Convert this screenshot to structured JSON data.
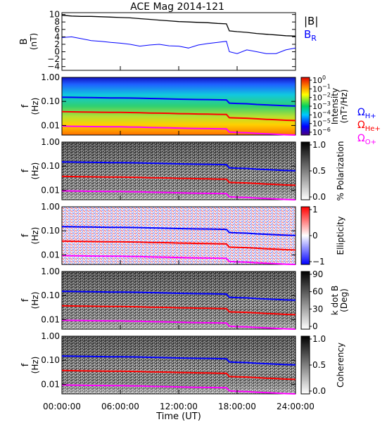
{
  "title": "ACE Mag 2014-121",
  "x_axis": {
    "label": "Time (UT)",
    "ticks": [
      "00:00:00",
      "06:00:00",
      "12:00:00",
      "18:00:00",
      "24:00:00"
    ],
    "range_hours": [
      0,
      24
    ]
  },
  "colors": {
    "B_total": "#000000",
    "B_R": "#0000ff",
    "H_plus": "#0000ff",
    "He_plus": "#ff0000",
    "O_plus": "#ff00ff"
  },
  "legend": {
    "panel1": [
      "|B|",
      "B",
      "R"
    ],
    "gyro": [
      {
        "symbol": "Ω",
        "sub": "H+",
        "color": "#0000ff"
      },
      {
        "symbol": "Ω",
        "sub": "He+",
        "color": "#ff0000"
      },
      {
        "symbol": "Ω",
        "sub": "O+",
        "color": "#ff00ff"
      }
    ]
  },
  "freq_ticks": [
    "1.00",
    "0.10",
    "0.01"
  ],
  "panels": [
    {
      "id": "field",
      "ylabel": "B",
      "yunit": "(nT)",
      "yticks": [
        "10",
        "8",
        "6",
        "4",
        "2",
        "0",
        "−2",
        "−4"
      ],
      "yrange": [
        -5,
        10.5
      ]
    },
    {
      "id": "intensity",
      "ylabel": "f",
      "yunit": "(Hz)",
      "colorbar_label": "Intensity",
      "colorbar_unit": "(nT²/Hz)",
      "colorbar_ticks": [
        {
          "base": "10",
          "exp": "0"
        },
        {
          "base": "10",
          "exp": "−1"
        },
        {
          "base": "10",
          "exp": "−2"
        },
        {
          "base": "10",
          "exp": "−3"
        },
        {
          "base": "10",
          "exp": "−4"
        },
        {
          "base": "10",
          "exp": "−5"
        },
        {
          "base": "10",
          "exp": "−6"
        }
      ]
    },
    {
      "id": "polarization",
      "ylabel": "f",
      "yunit": "(Hz)",
      "colorbar_label": "% Polarization",
      "colorbar_ticks": [
        "1.0",
        "0.5",
        "0.0"
      ]
    },
    {
      "id": "ellipticity",
      "ylabel": "f",
      "yunit": "(Hz)",
      "colorbar_label": "Ellipticity",
      "colorbar_ticks": [
        "1",
        "0",
        "−1"
      ]
    },
    {
      "id": "kdotb",
      "ylabel": "f",
      "yunit": "(Hz)",
      "colorbar_label": "k dot B",
      "colorbar_unit": "(Deg)",
      "colorbar_ticks": [
        "90",
        "60",
        "30",
        "0"
      ]
    },
    {
      "id": "coherency",
      "ylabel": "f",
      "yunit": "(Hz)",
      "colorbar_label": "Coherency",
      "colorbar_ticks": [
        "1.0",
        "0.5",
        "0.0"
      ]
    }
  ],
  "chart_data": {
    "type": "line",
    "title": "ACE Mag 2014-121",
    "xlabel": "Time (UT)",
    "x_hours": [
      0,
      1,
      2,
      3,
      4,
      5,
      6,
      7,
      8,
      9,
      10,
      11,
      12,
      13,
      14,
      15,
      16,
      16.9,
      17.2,
      18,
      19,
      20,
      21,
      22,
      23,
      24
    ],
    "series": [
      {
        "name": "|B|",
        "values": [
          9.8,
          9.6,
          9.5,
          9.5,
          9.4,
          9.3,
          9.2,
          9.1,
          8.9,
          8.7,
          8.5,
          8.3,
          8.1,
          8.0,
          7.9,
          7.8,
          7.6,
          7.5,
          5.6,
          5.4,
          5.2,
          4.9,
          4.7,
          4.5,
          4.3,
          4.2
        ]
      },
      {
        "name": "B_R",
        "values": [
          3.8,
          4.0,
          3.5,
          3.0,
          2.8,
          2.5,
          2.3,
          2.0,
          1.5,
          1.8,
          2.0,
          1.6,
          1.5,
          1.0,
          1.8,
          2.2,
          2.5,
          2.8,
          0.0,
          -0.5,
          0.5,
          0.0,
          -0.5,
          -0.5,
          0.5,
          1.0
        ]
      },
      {
        "name": "Ω_H+ (Hz)",
        "values": [
          0.15,
          0.148,
          0.146,
          0.144,
          0.142,
          0.14,
          0.14,
          0.138,
          0.136,
          0.133,
          0.13,
          0.127,
          0.124,
          0.122,
          0.12,
          0.119,
          0.117,
          0.115,
          0.085,
          0.082,
          0.08,
          0.075,
          0.072,
          0.069,
          0.066,
          0.064
        ]
      },
      {
        "name": "Ω_He+ (Hz)",
        "values": [
          0.0375,
          0.037,
          0.0365,
          0.036,
          0.0355,
          0.035,
          0.035,
          0.0345,
          0.034,
          0.033,
          0.0325,
          0.032,
          0.031,
          0.0305,
          0.03,
          0.0297,
          0.029,
          0.0288,
          0.021,
          0.0205,
          0.02,
          0.019,
          0.018,
          0.0172,
          0.0165,
          0.016
        ]
      },
      {
        "name": "Ω_O+ (Hz)",
        "values": [
          0.0094,
          0.0092,
          0.0091,
          0.009,
          0.0089,
          0.0088,
          0.0088,
          0.0086,
          0.0085,
          0.0083,
          0.0081,
          0.008,
          0.0078,
          0.0076,
          0.0075,
          0.0074,
          0.0073,
          0.0072,
          0.0053,
          0.0051,
          0.005,
          0.0047,
          0.0045,
          0.0043,
          0.0041,
          0.004
        ]
      }
    ],
    "ylim_field_nT": [
      -5,
      10.5
    ],
    "ylim_freq_Hz": [
      0.004,
      1.0
    ],
    "yscale_freq": "log"
  }
}
